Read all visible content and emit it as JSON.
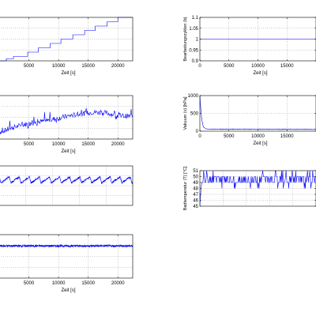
{
  "chart_data": [
    {
      "id": "steps",
      "type": "line",
      "xlabel": "Zeit [s]",
      "ylabel": "",
      "xlim": [
        0,
        22500
      ],
      "ylim": [
        0,
        10
      ],
      "xticks": [
        5000,
        10000,
        15000,
        20000
      ],
      "yticks": [],
      "grid": true,
      "color": "#0000ff",
      "series": [
        {
          "x": [
            0,
            1200,
            2400,
            4800,
            6600,
            8600,
            10400,
            12400,
            14400,
            16200,
            18200,
            20000,
            22500
          ],
          "values": [
            0,
            0.5,
            1,
            2,
            3,
            4,
            5,
            6,
            7,
            8,
            9,
            10,
            10
          ]
        }
      ]
    },
    {
      "id": "bearbeitungszyklen",
      "type": "line",
      "xlabel": "Zeit [s]",
      "ylabel": "Bearbeitungszyklen (b)",
      "xlim": [
        0,
        20000
      ],
      "ylim": [
        0.9,
        1.1
      ],
      "xticks": [
        0,
        5000,
        10000,
        15000
      ],
      "yticks": [
        0.9,
        0.95,
        1,
        1.05,
        1.1
      ],
      "grid": true,
      "color": "#0000ff",
      "series": [
        {
          "x": [
            0,
            20000
          ],
          "values": [
            1,
            1
          ]
        }
      ]
    },
    {
      "id": "noisy-trend",
      "type": "line",
      "xlabel": "Zeit [s]",
      "ylabel": "",
      "xlim": [
        0,
        22500
      ],
      "ylim": [
        0,
        10
      ],
      "xticks": [
        5000,
        10000,
        15000,
        20000
      ],
      "yticks": [],
      "grid": true,
      "color": "#0000ff",
      "series": [
        {
          "x": [
            0,
            2000,
            4000,
            6000,
            8000,
            10000,
            12000,
            14000,
            16000,
            18000,
            20000,
            22500
          ],
          "values": [
            1.5,
            2.5,
            3.3,
            3.8,
            4.2,
            4.8,
            5.4,
            5.8,
            6.2,
            6.0,
            5.4,
            5.2
          ]
        }
      ]
    },
    {
      "id": "vakuum",
      "type": "line",
      "xlabel": "Zeit [s]",
      "ylabel": "Vakuum (v) [hPa]",
      "xlim": [
        0,
        20000
      ],
      "ylim": [
        0,
        1000
      ],
      "xticks": [
        0,
        5000,
        10000,
        15000
      ],
      "yticks": [
        0,
        500,
        1000
      ],
      "grid": true,
      "color": "#0000ff",
      "series": [
        {
          "x": [
            0,
            100,
            300,
            600,
            1000,
            1500,
            20000
          ],
          "values": [
            1000,
            750,
            350,
            120,
            70,
            55,
            50
          ]
        }
      ]
    },
    {
      "id": "periodic",
      "type": "line",
      "xlabel": "",
      "ylabel": "",
      "xlim": [
        0,
        22500
      ],
      "ylim": [
        0,
        10
      ],
      "xticks": [],
      "yticks": [],
      "grid": true,
      "color": "#0000ff",
      "series": [
        {
          "x": [
            0,
            22500
          ],
          "values": [
            6,
            6
          ]
        }
      ]
    },
    {
      "id": "badtemperatur",
      "type": "line",
      "xlabel": "",
      "ylabel": "Badtemperatur (T) [°C]",
      "xlim": [
        0,
        20000
      ],
      "ylim": [
        45,
        51
      ],
      "xticks": [],
      "yticks": [
        45,
        46,
        47,
        48,
        49,
        50,
        51
      ],
      "grid": true,
      "color": "#0000ff",
      "series": [
        {
          "x": [
            0,
            20000
          ],
          "values": [
            49.5,
            49.5
          ]
        }
      ]
    },
    {
      "id": "flat-noise",
      "type": "line",
      "xlabel": "Zeit [s]",
      "ylabel": "",
      "xlim": [
        0,
        22500
      ],
      "ylim": [
        0,
        10
      ],
      "xticks": [
        5000,
        10000,
        15000,
        20000
      ],
      "yticks": [],
      "grid": true,
      "color": "#0000ff",
      "series": [
        {
          "x": [
            0,
            22500
          ],
          "values": [
            7.4,
            7.4
          ]
        }
      ]
    }
  ]
}
